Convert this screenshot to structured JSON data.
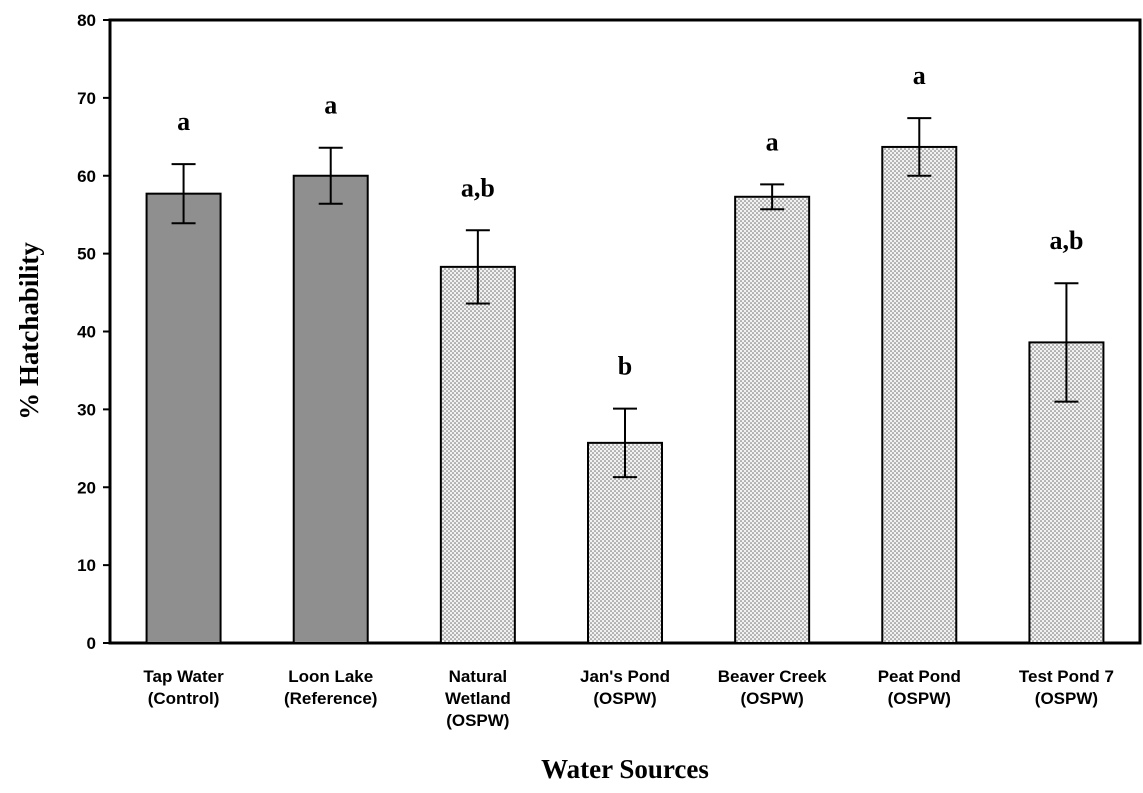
{
  "chart_data": {
    "type": "bar",
    "xlabel": "Water Sources",
    "ylabel": "% Hatchability",
    "ylim": [
      0,
      80
    ],
    "yticks": [
      "0",
      "10",
      "20",
      "30",
      "40",
      "50",
      "60",
      "70",
      "80"
    ],
    "grid": false,
    "categories": [
      "Tap Water\n(Control)",
      "Loon Lake\n(Reference)",
      "Natural\nWetland\n(OSPW)",
      "Jan's Pond\n(OSPW)",
      "Beaver Creek\n(OSPW)",
      "Peat Pond\n(OSPW)",
      "Test Pond 7\n(OSPW)"
    ],
    "values": [
      57.7,
      60.0,
      48.3,
      25.7,
      57.3,
      63.7,
      38.6
    ],
    "errors": [
      3.8,
      3.6,
      4.7,
      4.4,
      1.6,
      3.7,
      7.6
    ],
    "significance_labels": [
      "a",
      "a",
      "a,b",
      "b",
      "a",
      "a",
      "a,b"
    ],
    "bar_styles": [
      "solid",
      "solid",
      "dotted",
      "dotted",
      "dotted",
      "dotted",
      "dotted"
    ],
    "colors": {
      "solid_fill": "#8f8f8f",
      "dotted_fill": "#f2f2f2",
      "dot_color": "#6a6a6a",
      "stroke": "#000000"
    }
  }
}
